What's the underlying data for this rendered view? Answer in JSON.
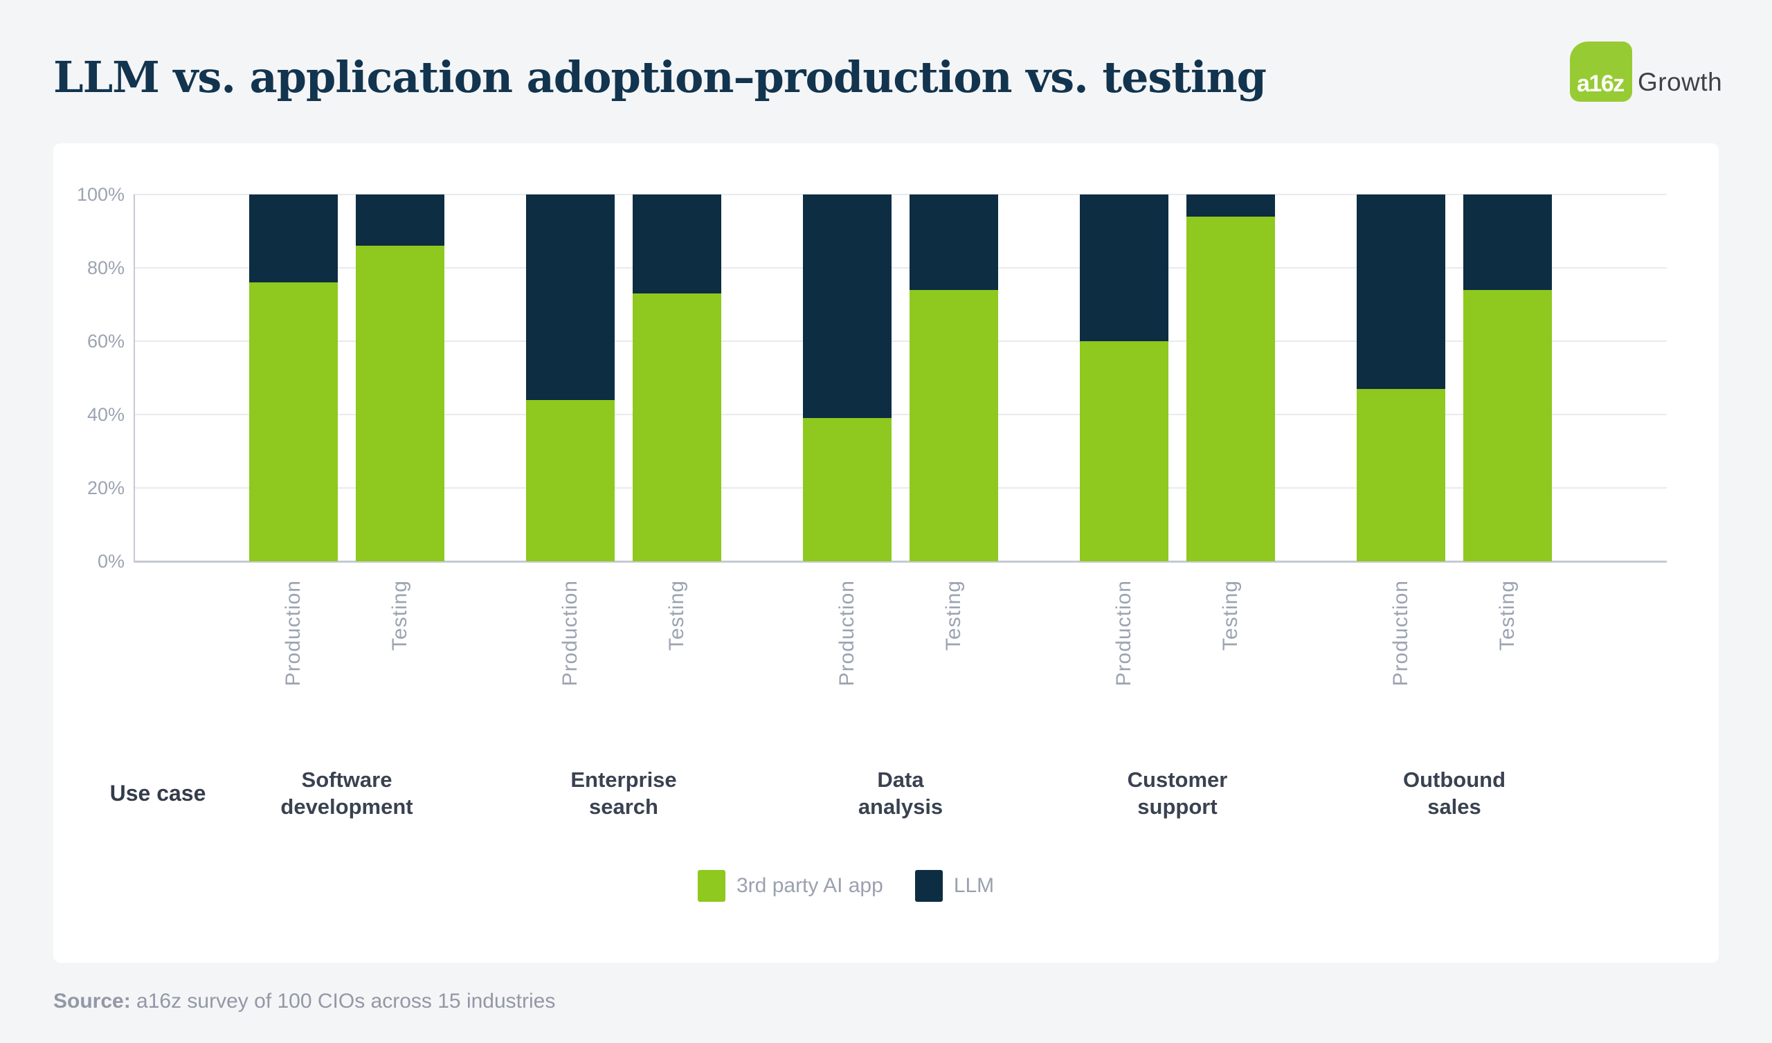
{
  "title": "LLM vs. application adoption–production vs. testing",
  "logo": {
    "mark": "a16z",
    "suffix": "Growth",
    "mark_color": "#97CB33"
  },
  "use_case_label": "Use case",
  "source": {
    "prefix": "Source:",
    "text": "a16z survey of 100 CIOs across 15 industries"
  },
  "legend": [
    {
      "label": "3rd party AI app",
      "color": "#8FC81E"
    },
    {
      "label": "LLM",
      "color": "#0D2D43"
    }
  ],
  "chart_data": {
    "type": "bar",
    "stacked": true,
    "unit": "%",
    "ylim": [
      0,
      100
    ],
    "grid": true,
    "legend_position": "bottom",
    "y_ticks": [
      0,
      20,
      40,
      60,
      80,
      100
    ],
    "y_tick_labels": [
      "0%",
      "20%",
      "40%",
      "60%",
      "80%",
      "100%"
    ],
    "x_axis_title": "Use case",
    "categories": [
      "Software development",
      "Enterprise search",
      "Data analysis",
      "Customer support",
      "Outbound sales"
    ],
    "sub_categories": [
      "Production",
      "Testing"
    ],
    "series": [
      {
        "name": "3rd party AI app",
        "color": "#8FC81E",
        "values": [
          [
            76,
            86
          ],
          [
            44,
            73
          ],
          [
            39,
            74
          ],
          [
            60,
            94
          ],
          [
            47,
            74
          ]
        ]
      },
      {
        "name": "LLM",
        "color": "#0D2D43",
        "values": [
          [
            24,
            14
          ],
          [
            56,
            27
          ],
          [
            61,
            26
          ],
          [
            40,
            6
          ],
          [
            53,
            26
          ]
        ]
      }
    ]
  }
}
